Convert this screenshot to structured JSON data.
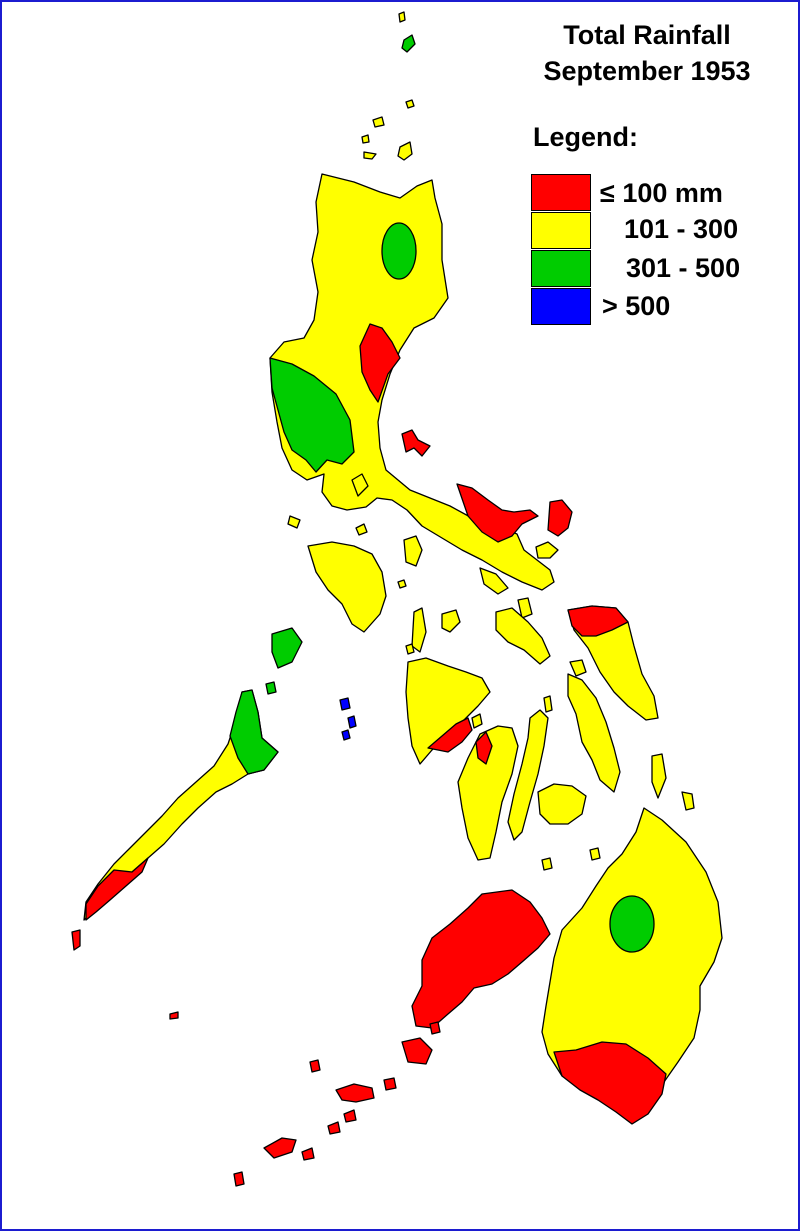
{
  "title": {
    "line1": "Total Rainfall",
    "line2": "September 1953"
  },
  "legend": {
    "heading": "Legend:",
    "items": [
      {
        "label": "≤ 100 mm",
        "color": "#ff0000"
      },
      {
        "label": "101 - 300",
        "color": "#ffff00"
      },
      {
        "label": "301 - 500",
        "color": "#00cc00"
      },
      {
        "label": "> 500",
        "color": "#0000ff"
      }
    ]
  },
  "colors": {
    "border": "#1c1cd0",
    "coastline": "#000000",
    "background": "#ffffff"
  }
}
